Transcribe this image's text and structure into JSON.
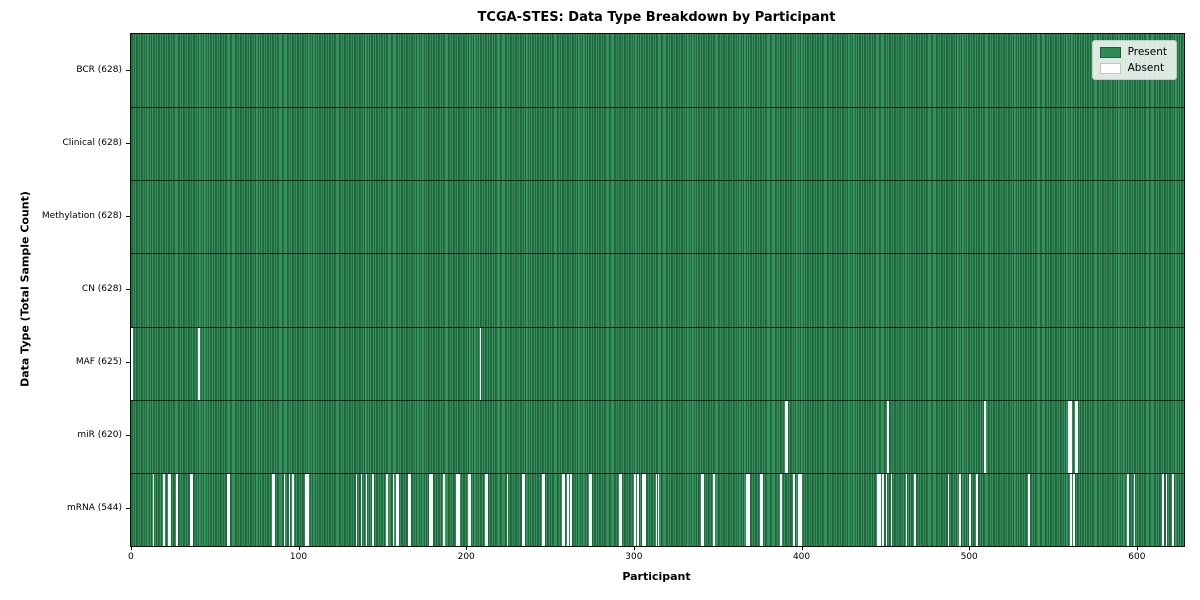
{
  "title": "TCGA-STES: Data Type Breakdown by Participant",
  "chart_data": {
    "type": "heatmap",
    "title": "TCGA-STES: Data Type Breakdown by Participant",
    "xlabel": "Participant",
    "ylabel": "Data Type (Total Sample Count)",
    "n_participants": 628,
    "x_ticks": [
      0,
      100,
      200,
      300,
      400,
      500,
      600
    ],
    "xlim": [
      -0.5,
      627.5
    ],
    "grid": false,
    "legend_position": "upper right",
    "legend": [
      {
        "label": "Present",
        "color": "#2e8b57"
      },
      {
        "label": "Absent",
        "color": "#ffffff"
      }
    ],
    "rows": [
      {
        "label": "BCR (628)",
        "name": "BCR",
        "present_count": 628,
        "absent": []
      },
      {
        "label": "Clinical (628)",
        "name": "Clinical",
        "present_count": 628,
        "absent": []
      },
      {
        "label": "Methylation (628)",
        "name": "Methylation",
        "present_count": 628,
        "absent": []
      },
      {
        "label": "CN (628)",
        "name": "CN",
        "present_count": 628,
        "absent": []
      },
      {
        "label": "MAF (625)",
        "name": "MAF",
        "present_count": 625,
        "absent": [
          0,
          40,
          208
        ]
      },
      {
        "label": "miR (620)",
        "name": "miR",
        "present_count": 620,
        "absent": [
          390,
          391,
          451,
          509,
          559,
          560,
          563,
          564
        ]
      },
      {
        "label": "mRNA (544)",
        "name": "mRNA",
        "present_count": 544,
        "absent": [
          13,
          19,
          22,
          23,
          27,
          35,
          36,
          57,
          58,
          84,
          85,
          91,
          94,
          96,
          104,
          105,
          134,
          137,
          140,
          144,
          152,
          156,
          158,
          159,
          165,
          166,
          178,
          179,
          186,
          194,
          195,
          201,
          202,
          211,
          212,
          224,
          233,
          234,
          245,
          246,
          257,
          258,
          260,
          262,
          273,
          274,
          291,
          292,
          300,
          302,
          305,
          306,
          313,
          314,
          340,
          341,
          347,
          367,
          368,
          375,
          376,
          387,
          395,
          398,
          399,
          445,
          446,
          448,
          450,
          453,
          462,
          467,
          487,
          494,
          500,
          504,
          535,
          560,
          562,
          594,
          598,
          615,
          617,
          621
        ]
      }
    ]
  },
  "colors": {
    "present": "#2e8b57",
    "absent": "#ffffff",
    "row_separator": "#1a1a1a",
    "spine": "#0a0a0a",
    "background": "#ffffff"
  }
}
